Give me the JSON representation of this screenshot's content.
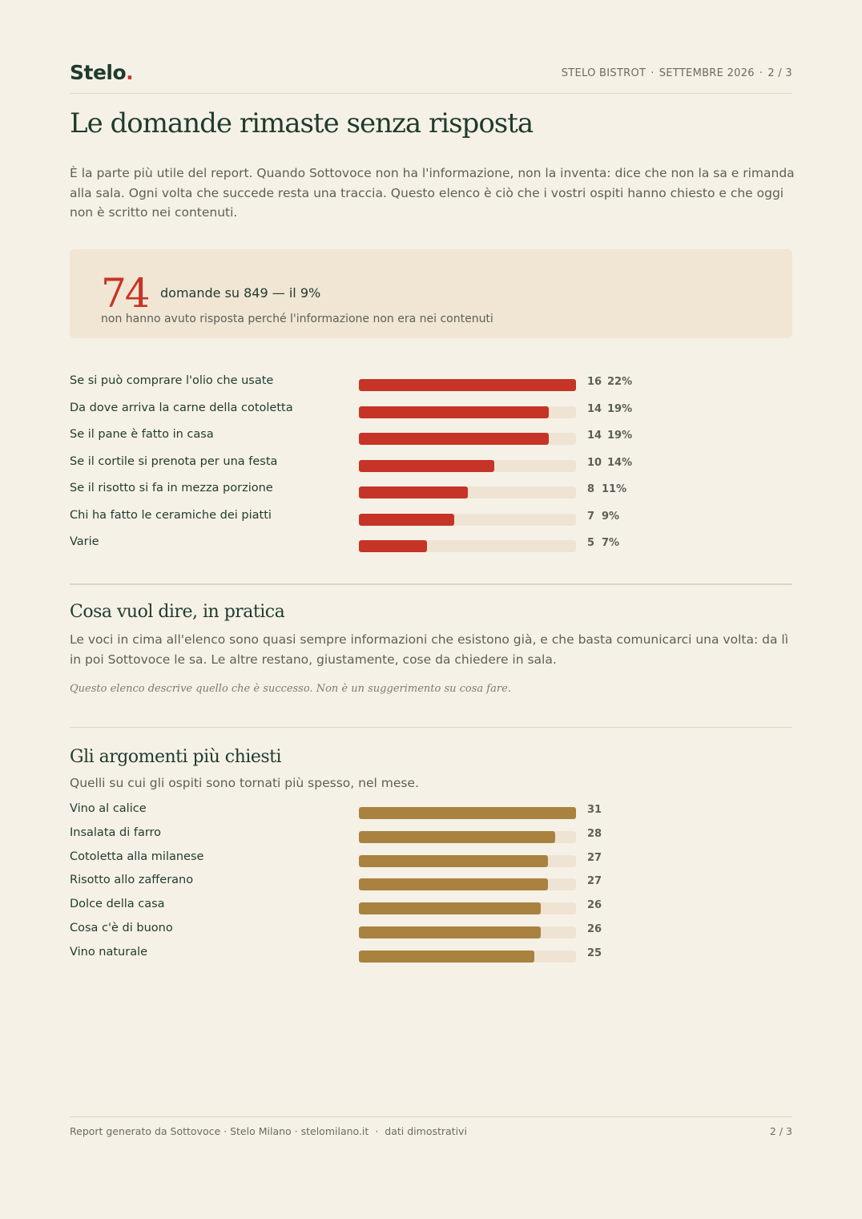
{
  "header": {
    "logo_text": "Stelo",
    "logo_dot": ".",
    "venue": "STELO BISTROT",
    "month": "SETTEMBRE 2026",
    "page": "2 / 3"
  },
  "title": "Le domande rimaste senza risposta",
  "intro": "È la parte più utile del report. Quando Sottovoce non ha l'informazione, non la inventa: dice che non la sa e rimanda alla sala. Ogni volta che succede resta una traccia. Questo elenco è ciò che i vostri ospiti hanno chiesto e che oggi non è scritto nei contenuti.",
  "callout": {
    "number": "74",
    "headline": "domande su 849 — il 9%",
    "subline": "non hanno avuto risposta perché l'informazione non era nei contenuti"
  },
  "colors": {
    "unanswered_bar": "#c53427",
    "topics_bar": "#a98240",
    "track": "#efe4d3",
    "accent_green": "#1f3b2e"
  },
  "chart_data": [
    {
      "type": "bar",
      "orientation": "horizontal",
      "categories": [
        "Se si può comprare l'olio che usate",
        "Da dove arriva la carne della cotoletta",
        "Se il pane è fatto in casa",
        "Se il cortile si prenota per una festa",
        "Se il risotto si fa in mezza porzione",
        "Chi ha fatto le ceramiche dei piatti",
        "Varie"
      ],
      "values": [
        16,
        14,
        14,
        10,
        8,
        7,
        5
      ],
      "percent_labels": [
        "22%",
        "19%",
        "19%",
        "14%",
        "11%",
        "9%",
        "7%"
      ],
      "xlim": [
        0,
        16
      ]
    },
    {
      "type": "bar",
      "orientation": "horizontal",
      "categories": [
        "Vino al calice",
        "Insalata di farro",
        "Cotoletta alla milanese",
        "Risotto allo zafferano",
        "Dolce della casa",
        "Cosa c'è di buono",
        "Vino naturale"
      ],
      "values": [
        31,
        28,
        27,
        27,
        26,
        26,
        25
      ],
      "xlim": [
        0,
        31
      ]
    }
  ],
  "practice": {
    "heading": "Cosa vuol dire, in pratica",
    "text": "Le voci in cima all'elenco sono quasi sempre informazioni che esistono già, e che basta comunicarci una volta: da lì in poi Sottovoce le sa. Le altre restano, giustamente, cose da chiedere in sala.",
    "note": "Questo elenco descrive quello che è successo. Non è un suggerimento su cosa fare."
  },
  "topics": {
    "heading": "Gli argomenti più chiesti",
    "subheading": "Quelli su cui gli ospiti sono tornati più spesso, nel mese."
  },
  "footer": {
    "credit": "Report generato da Sottovoce · Stelo Milano · stelomilano.it",
    "disclaimer": "dati dimostrativi",
    "page": "2 / 3"
  }
}
